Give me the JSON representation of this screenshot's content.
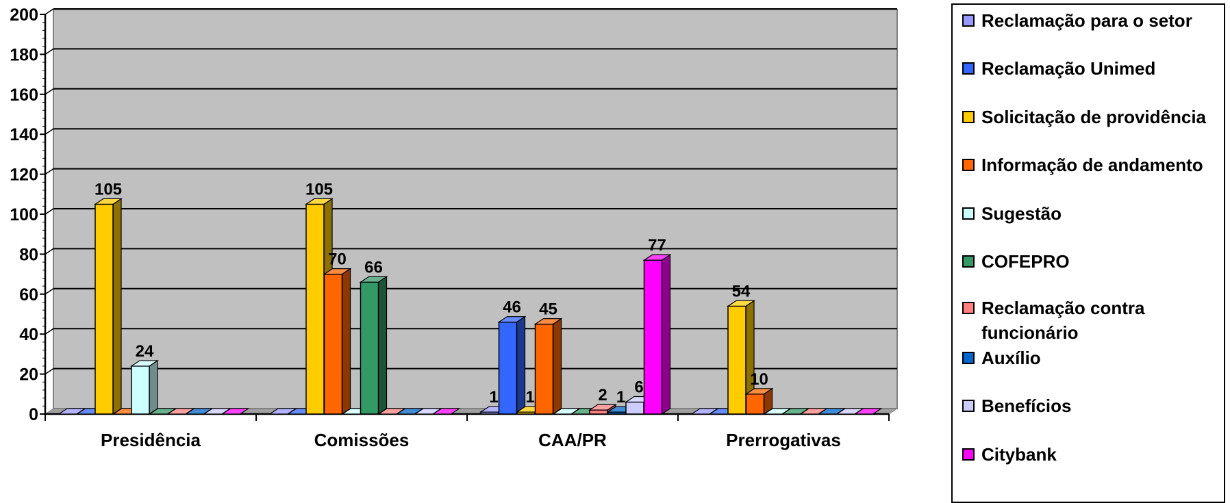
{
  "chart_data": {
    "type": "bar",
    "categories": [
      "Presidência",
      "Comissões",
      "CAA/PR",
      "Prerrogativas"
    ],
    "ylim": [
      0,
      200
    ],
    "yticks": [
      0,
      20,
      40,
      60,
      80,
      100,
      120,
      140,
      160,
      180,
      200
    ],
    "grid": true,
    "legend_position": "right",
    "series": [
      {
        "name": "Reclamação para o setor",
        "color": "#9999ff",
        "values": [
          0,
          0,
          1,
          0
        ],
        "labels": [
          "",
          "",
          "1",
          ""
        ]
      },
      {
        "name": "Reclamação Unimed",
        "color": "#3366ff",
        "values": [
          0,
          0,
          46,
          0
        ],
        "labels": [
          "",
          "",
          "46",
          ""
        ]
      },
      {
        "name": "Solicitação de providência",
        "color": "#ffcc00",
        "values": [
          105,
          105,
          1,
          54
        ],
        "labels": [
          "105",
          "105",
          "1",
          "54"
        ]
      },
      {
        "name": "Informação de andamento",
        "color": "#ff6600",
        "values": [
          0,
          70,
          45,
          10
        ],
        "labels": [
          "",
          "70",
          "45",
          "10"
        ]
      },
      {
        "name": "Sugestão",
        "color": "#ccffff",
        "values": [
          24,
          0,
          0,
          0
        ],
        "labels": [
          "24",
          "",
          "",
          ""
        ]
      },
      {
        "name": "COFEPRO",
        "color": "#339966",
        "values": [
          0,
          66,
          0,
          0
        ],
        "labels": [
          "",
          "66",
          "",
          ""
        ]
      },
      {
        "name": "Reclamação contra funcionário",
        "color": "#ff8080",
        "values": [
          0,
          0,
          2,
          0
        ],
        "labels": [
          "",
          "",
          "2",
          ""
        ]
      },
      {
        "name": "Auxílio",
        "color": "#0066cc",
        "values": [
          0,
          0,
          1,
          0
        ],
        "labels": [
          "",
          "",
          "1",
          ""
        ]
      },
      {
        "name": "Benefícios",
        "color": "#ccccff",
        "values": [
          0,
          0,
          6,
          0
        ],
        "labels": [
          "",
          "",
          "6",
          ""
        ]
      },
      {
        "name": "Citybank",
        "color": "#ff00ff",
        "values": [
          0,
          0,
          77,
          0
        ],
        "labels": [
          "",
          "",
          "77",
          ""
        ]
      }
    ]
  }
}
